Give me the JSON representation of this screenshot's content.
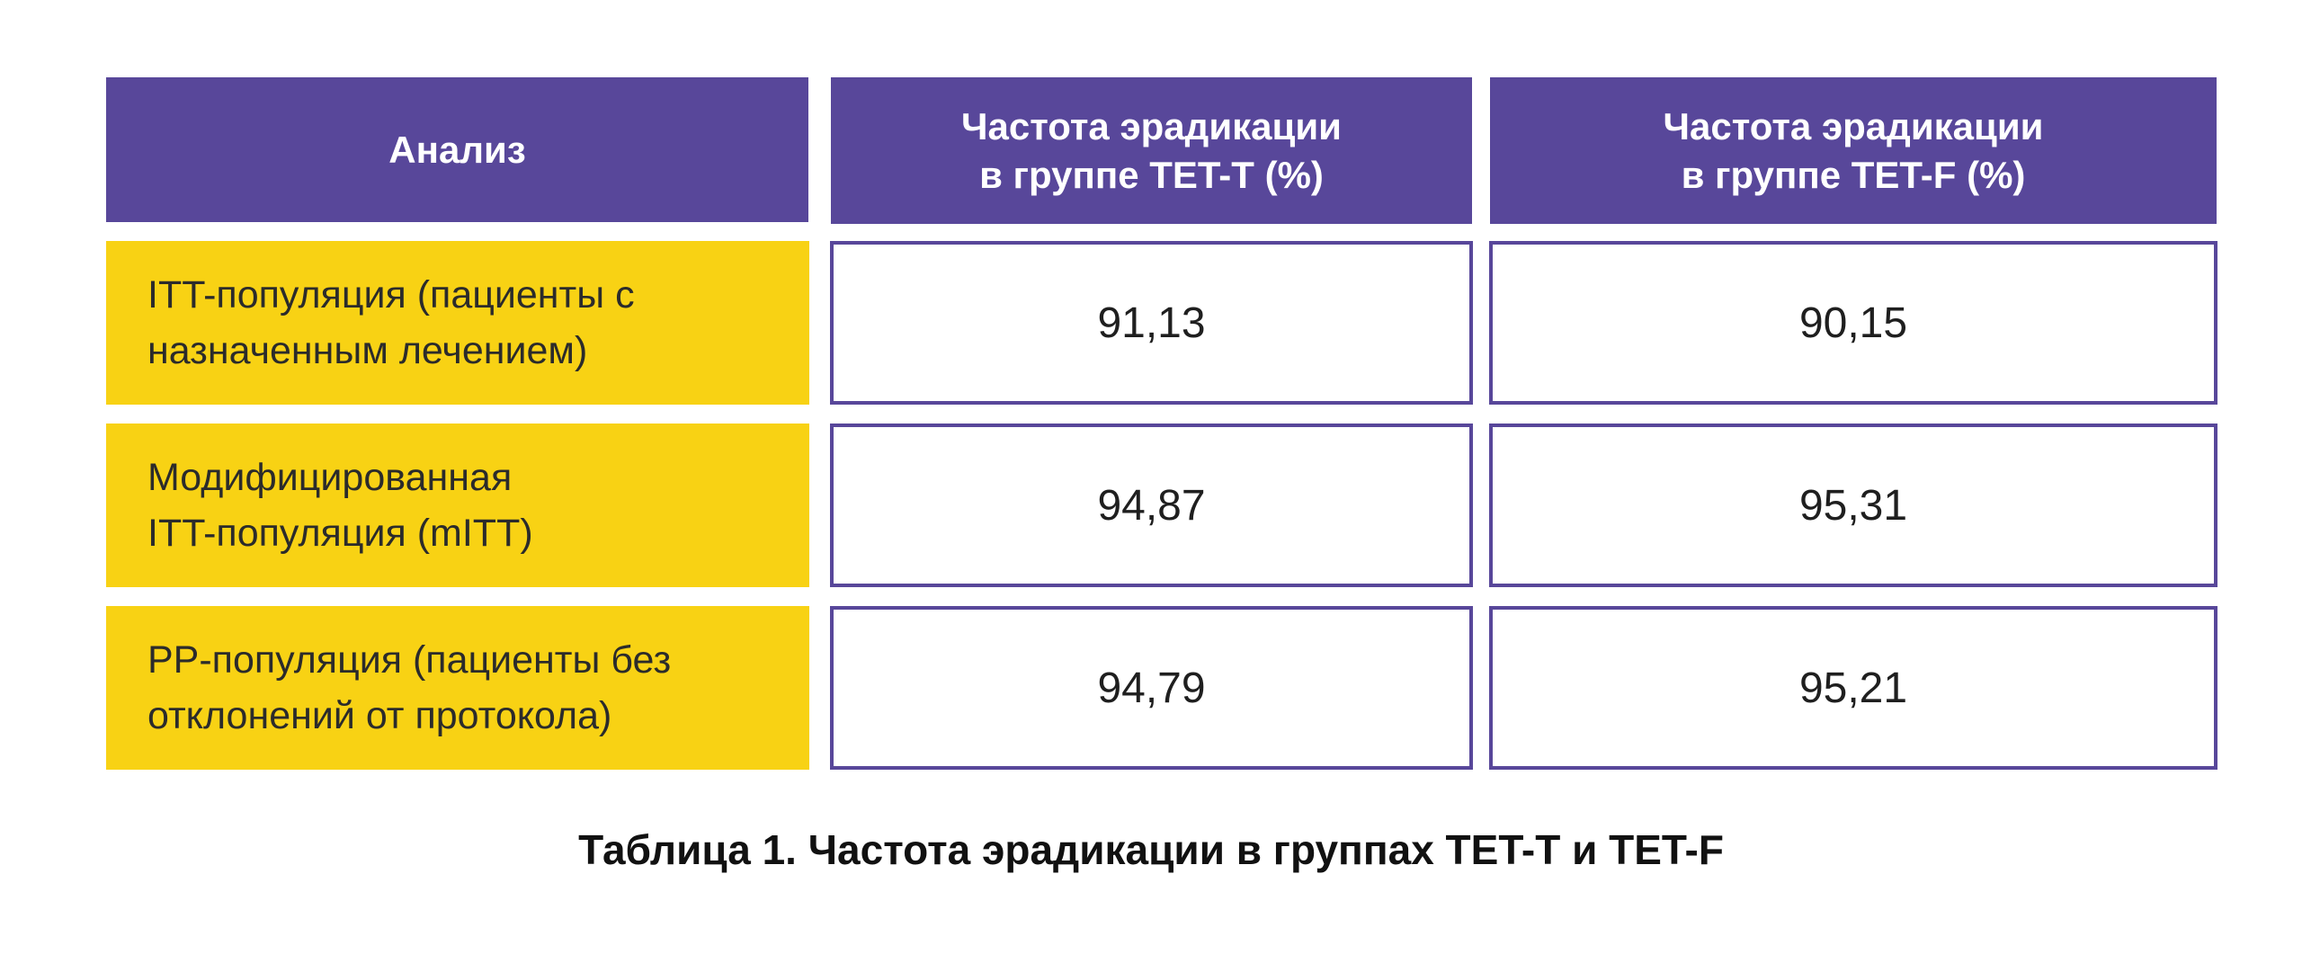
{
  "table": {
    "headers": [
      [
        "Анализ"
      ],
      [
        "Частота эрадикации",
        "в группе TET-T (%)"
      ],
      [
        "Частота эрадикации",
        "в группе TET-F (%)"
      ]
    ],
    "rows": [
      {
        "label_lines": [
          "ITT-популяция (пациенты с",
          "назначенным лечением)"
        ],
        "tet_t": "91,13",
        "tet_f": "90,15"
      },
      {
        "label_lines": [
          "Модифицированная",
          "ITT-популяция (mITT)"
        ],
        "tet_t": "94,87",
        "tet_f": "95,31"
      },
      {
        "label_lines": [
          "PP-популяция (пациенты без",
          "отклонений от протокола)"
        ],
        "tet_t": "94,79",
        "tet_f": "95,21"
      }
    ]
  },
  "caption": "Таблица 1. Частота эрадикации в группах TET-T и TET-F",
  "colors": {
    "header_bg": "#58479a",
    "label_bg": "#f8d214",
    "border": "#58479a"
  }
}
